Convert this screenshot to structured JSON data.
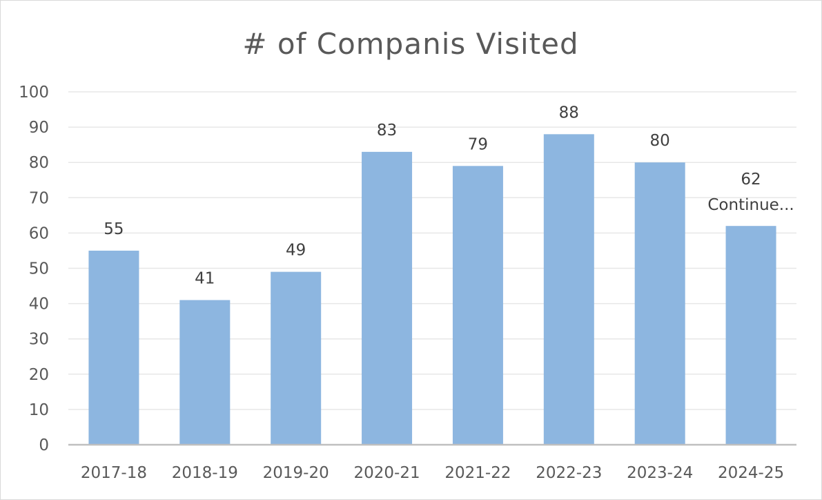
{
  "chart_data": {
    "type": "bar",
    "title": "# of Companis Visited",
    "xlabel": "",
    "ylabel": "",
    "categories": [
      "2017-18",
      "2018-19",
      "2019-20",
      "2020-21",
      "2021-22",
      "2022-23",
      "2023-24",
      "2024-25"
    ],
    "values": [
      55,
      41,
      49,
      83,
      79,
      88,
      80,
      62
    ],
    "data_labels": [
      "55",
      "41",
      "49",
      "83",
      "79",
      "88",
      "80",
      "62"
    ],
    "annotations": [
      {
        "category": "2024-25",
        "text": "Continue..."
      }
    ],
    "ylim": [
      0,
      100
    ],
    "yticks": [
      0,
      10,
      20,
      30,
      40,
      50,
      60,
      70,
      80,
      90,
      100
    ],
    "grid": true,
    "legend": "none",
    "bar_color": "#8db6e0",
    "text_color": "#595959"
  }
}
